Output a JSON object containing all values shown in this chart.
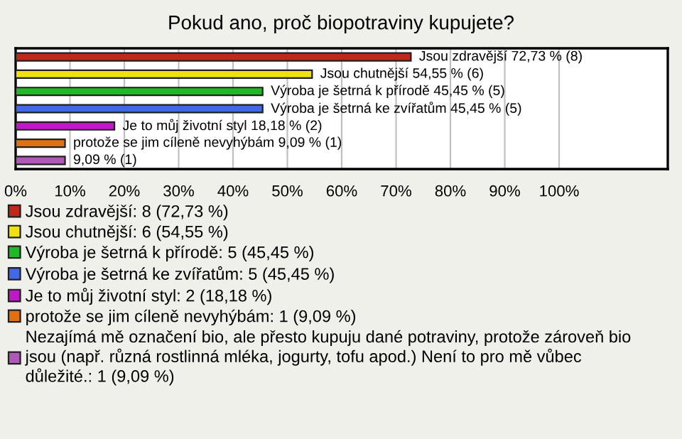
{
  "chart_data": {
    "type": "bar",
    "orientation": "horizontal",
    "title": "Pokud ano, proč biopotraviny kupujete?",
    "categories": [
      null,
      null,
      null,
      null,
      null,
      null,
      null
    ],
    "series": [
      {
        "name": "Jsou zdravější: 8 (72,73 %)",
        "color": "#c0281c",
        "values": [
          72.73,
          null,
          null,
          null,
          null,
          null,
          null
        ],
        "value_labels": [
          "Jsou zdravější 72,73 % (8)",
          null,
          null,
          null,
          null,
          null,
          null
        ]
      },
      {
        "name": "Jsou chutnější: 6 (54,55 %)",
        "color": "#f0e010",
        "values": [
          null,
          54.55,
          null,
          null,
          null,
          null,
          null
        ],
        "value_labels": [
          null,
          "Jsou chutnější 54,55 % (6)",
          null,
          null,
          null,
          null,
          null
        ]
      },
      {
        "name": "Výroba je šetrná k přírodě: 5 (45,45 %)",
        "color": "#20b828",
        "values": [
          null,
          null,
          45.45,
          null,
          null,
          null,
          null
        ],
        "value_labels": [
          null,
          null,
          "Výroba je šetrná k přírodě 45,45 % (5)",
          null,
          null,
          null,
          null
        ]
      },
      {
        "name": "Výroba je šetrná ke zvířatům: 5 (45,45 %)",
        "color": "#4068e8",
        "values": [
          null,
          null,
          null,
          45.45,
          null,
          null,
          null
        ],
        "value_labels": [
          null,
          null,
          null,
          "Výroba je šetrná ke zvířatům 45,45 % (5)",
          null,
          null,
          null
        ]
      },
      {
        "name": "Je to můj životní styl: 2 (18,18 %)",
        "color": "#c018c8",
        "values": [
          null,
          null,
          null,
          null,
          18.18,
          null,
          null
        ],
        "value_labels": [
          null,
          null,
          null,
          null,
          "Je to můj životní styl 18,18 % (2)",
          null,
          null
        ]
      },
      {
        "name": "protože se jim cíleně nevyhýbám: 1 (9,09 %)",
        "color": "#e07010",
        "values": [
          null,
          null,
          null,
          null,
          null,
          9.09,
          null
        ],
        "value_labels": [
          null,
          null,
          null,
          null,
          null,
          "protože se jim cíleně nevyhýbám 9,09 % (1)",
          null
        ]
      },
      {
        "name": "Nezajímá mě označení bio, ale přesto kupuju dané potraviny, protože zároveň bio jsou (např. různá rostlinná mléka, jogurty, tofu apod.) Není to pro mě vůbec důležité.: 1 (9,09 %)",
        "color": "#b058b8",
        "values": [
          null,
          null,
          null,
          null,
          null,
          null,
          9.09
        ],
        "value_labels": [
          null,
          null,
          null,
          null,
          null,
          null,
          "9,09 % (1)"
        ]
      }
    ],
    "xlim": [
      0,
      120
    ],
    "xticks": [
      {
        "value": 0,
        "label": "0%"
      },
      {
        "value": 10,
        "label": "10%"
      },
      {
        "value": 20,
        "label": "20%"
      },
      {
        "value": 30,
        "label": "30%"
      },
      {
        "value": 40,
        "label": "40%"
      },
      {
        "value": 50,
        "label": "50%"
      },
      {
        "value": 60,
        "label": "60%"
      },
      {
        "value": 70,
        "label": "70%"
      },
      {
        "value": 80,
        "label": "80%"
      },
      {
        "value": 90,
        "label": "90%"
      },
      {
        "value": 100,
        "label": "100%"
      }
    ],
    "grid": "x",
    "legend": "bottom",
    "tick_labels": "x"
  }
}
